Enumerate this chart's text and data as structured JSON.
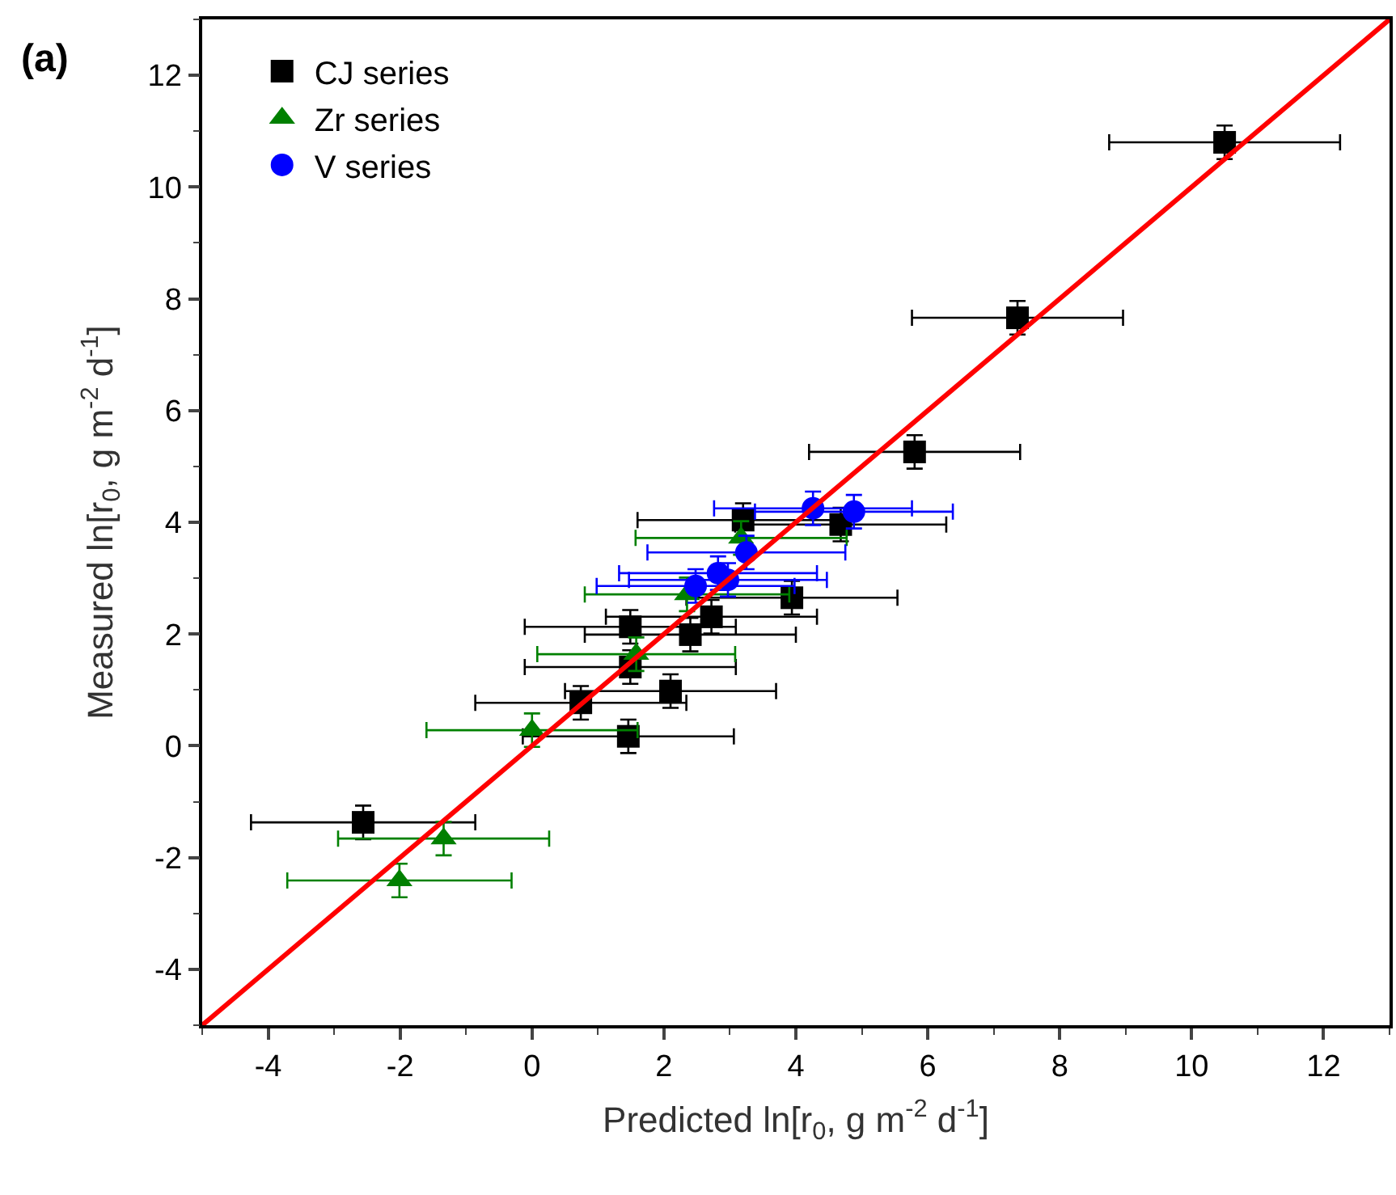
{
  "chart_data": {
    "type": "scatter",
    "xlabel": "Predicted ln[r$_{0}$, g m$^{-2}$ d$^{-1}$]",
    "ylabel": "Measured ln[r$_{0}$, g m$^{-2}$ d$^{-1}$]",
    "annotations": [
      "(a)"
    ],
    "xlim": [
      -5,
      13
    ],
    "ylim": [
      -5,
      13
    ],
    "xticks": [
      -4,
      -2,
      0,
      2,
      4,
      6,
      8,
      10,
      12
    ],
    "yticks": [
      -4,
      -2,
      0,
      2,
      4,
      6,
      8,
      10,
      12
    ],
    "legend": "top left",
    "series": [
      {
        "name": "CJ series",
        "marker": "square",
        "color": "#000000",
        "x": [
          10.5,
          7.36,
          5.8,
          4.68,
          3.2,
          3.94,
          2.72,
          2.4,
          1.49,
          1.49,
          2.1,
          0.74,
          1.46,
          -2.56
        ],
        "values": [
          10.8,
          7.66,
          5.26,
          3.96,
          4.04,
          2.65,
          2.31,
          1.99,
          2.13,
          1.41,
          0.98,
          0.77,
          0.17,
          -1.37
        ],
        "xerrors": [
          1.75,
          1.6,
          1.6,
          1.6,
          1.6,
          1.6,
          1.6,
          1.6,
          1.6,
          1.6,
          1.6,
          1.6,
          1.6,
          1.7
        ],
        "errors": [
          0.3,
          0.3,
          0.3,
          0.3,
          0.3,
          0.3,
          0.3,
          0.3,
          0.3,
          0.3,
          0.3,
          0.3,
          0.3,
          0.3
        ]
      },
      {
        "name": "Zr series",
        "marker": "triangle",
        "color": "#008000",
        "x": [
          -1.34,
          -2.01,
          0.0,
          1.58,
          2.35,
          3.17
        ],
        "values": [
          -1.66,
          -2.41,
          0.28,
          1.64,
          2.71,
          3.72
        ],
        "xerrors": [
          1.6,
          1.7,
          1.6,
          1.5,
          1.55,
          1.6
        ],
        "errors": [
          0.3,
          0.3,
          0.3,
          0.3,
          0.3,
          0.3
        ]
      },
      {
        "name": "V series",
        "marker": "circle",
        "color": "#0000ff",
        "x": [
          4.26,
          4.88,
          3.25,
          2.82,
          2.97,
          2.48
        ],
        "values": [
          4.25,
          4.19,
          3.46,
          3.09,
          2.97,
          2.86
        ],
        "xerrors": [
          1.5,
          1.5,
          1.5,
          1.5,
          1.5,
          1.5
        ],
        "errors": [
          0.3,
          0.3,
          0.3,
          0.3,
          0.3,
          0.3
        ]
      },
      {
        "type": "line",
        "marker": "none",
        "color": "#ff0000",
        "x": [
          -5,
          13
        ],
        "values": [
          -5,
          13
        ]
      }
    ]
  }
}
